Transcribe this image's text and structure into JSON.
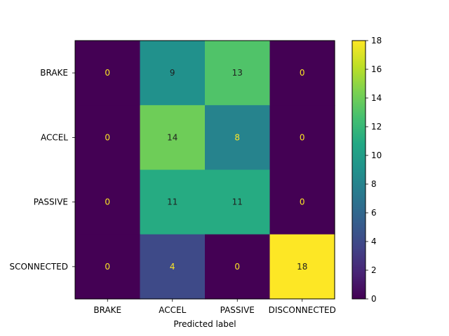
{
  "chart_data": {
    "type": "heatmap",
    "title": "",
    "xlabel": "Predicted label",
    "ylabel": "",
    "x_categories": [
      "BRAKE",
      "ACCEL",
      "PASSIVE",
      "DISCONNECTED"
    ],
    "y_categories": [
      "BRAKE",
      "ACCEL",
      "PASSIVE",
      "DISCONNECTED"
    ],
    "y_tick_labels_visible": [
      "BRAKE",
      "ACCEL",
      "PASSIVE",
      "SCONNECTED"
    ],
    "matrix": [
      [
        0,
        9,
        13,
        0
      ],
      [
        0,
        14,
        8,
        0
      ],
      [
        0,
        11,
        11,
        0
      ],
      [
        0,
        4,
        0,
        18
      ]
    ],
    "colormap": "viridis",
    "color_range": [
      0,
      18
    ],
    "colorbar_ticks": [
      0,
      2,
      4,
      6,
      8,
      10,
      12,
      14,
      16,
      18
    ],
    "text_colors": {
      "light": "#fde725",
      "dark": "#1f1f1f"
    }
  }
}
